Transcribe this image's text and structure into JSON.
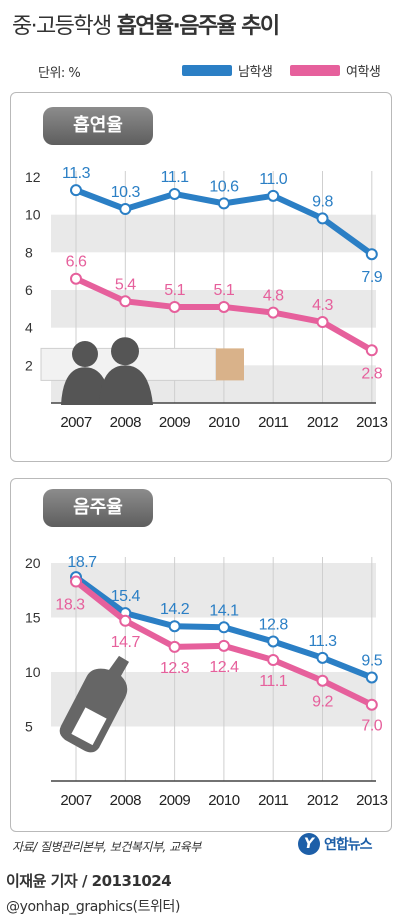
{
  "header": {
    "title_main": "중·고등학생",
    "title_bold": "흡연율·음주율 추이",
    "unit": "단위: %",
    "legend": [
      {
        "label": "남학생",
        "color": "#2b7fc5"
      },
      {
        "label": "여학생",
        "color": "#e6609c"
      }
    ]
  },
  "colors": {
    "male": "#2b7fc5",
    "female": "#e6609c",
    "band": "#e9e9e9",
    "silhouette": "#555555"
  },
  "chart_data": [
    {
      "type": "line",
      "title": "흡연율",
      "x": [
        "2007",
        "2008",
        "2009",
        "2010",
        "2011",
        "2012",
        "2013"
      ],
      "ylim": [
        0,
        12
      ],
      "yticks": [
        "2",
        "4",
        "6",
        "8",
        "10",
        "12"
      ],
      "grid": "alternating bands",
      "series": [
        {
          "name": "남학생",
          "values": [
            11.3,
            10.3,
            11.1,
            10.6,
            11.0,
            9.8,
            7.9
          ],
          "labels": [
            "11.3",
            "10.3",
            "11.1",
            "10.6",
            "11.0",
            "9.8",
            "7.9"
          ]
        },
        {
          "name": "여학생",
          "values": [
            6.6,
            5.4,
            5.1,
            5.1,
            4.8,
            4.3,
            2.8
          ],
          "labels": [
            "6.6",
            "5.4",
            "5.1",
            "5.1",
            "4.8",
            "4.3",
            "2.8"
          ]
        }
      ]
    },
    {
      "type": "line",
      "title": "음주율",
      "x": [
        "2007",
        "2008",
        "2009",
        "2010",
        "2011",
        "2012",
        "2013"
      ],
      "ylim": [
        0,
        20
      ],
      "yticks": [
        "5",
        "10",
        "15",
        "20"
      ],
      "grid": "alternating bands",
      "series": [
        {
          "name": "남학생",
          "values": [
            18.7,
            15.4,
            14.2,
            14.1,
            12.8,
            11.3,
            9.5
          ],
          "labels": [
            "18.7",
            "15.4",
            "14.2",
            "14.1",
            "12.8",
            "11.3",
            "9.5"
          ]
        },
        {
          "name": "여학생",
          "values": [
            18.3,
            14.7,
            12.3,
            12.4,
            11.1,
            9.2,
            7.0
          ],
          "labels": [
            "18.3",
            "14.7",
            "12.3",
            "12.4",
            "11.1",
            "9.2",
            "7.0"
          ]
        }
      ]
    }
  ],
  "footer": {
    "source": "자료/ 질병관리본부, 보건복지부, 교육부",
    "logo_mark": "Y",
    "logo_text": "연합뉴스",
    "credit": "이재윤 기자 / 20131024",
    "handle": "@yonhap_graphics(트위터)"
  }
}
